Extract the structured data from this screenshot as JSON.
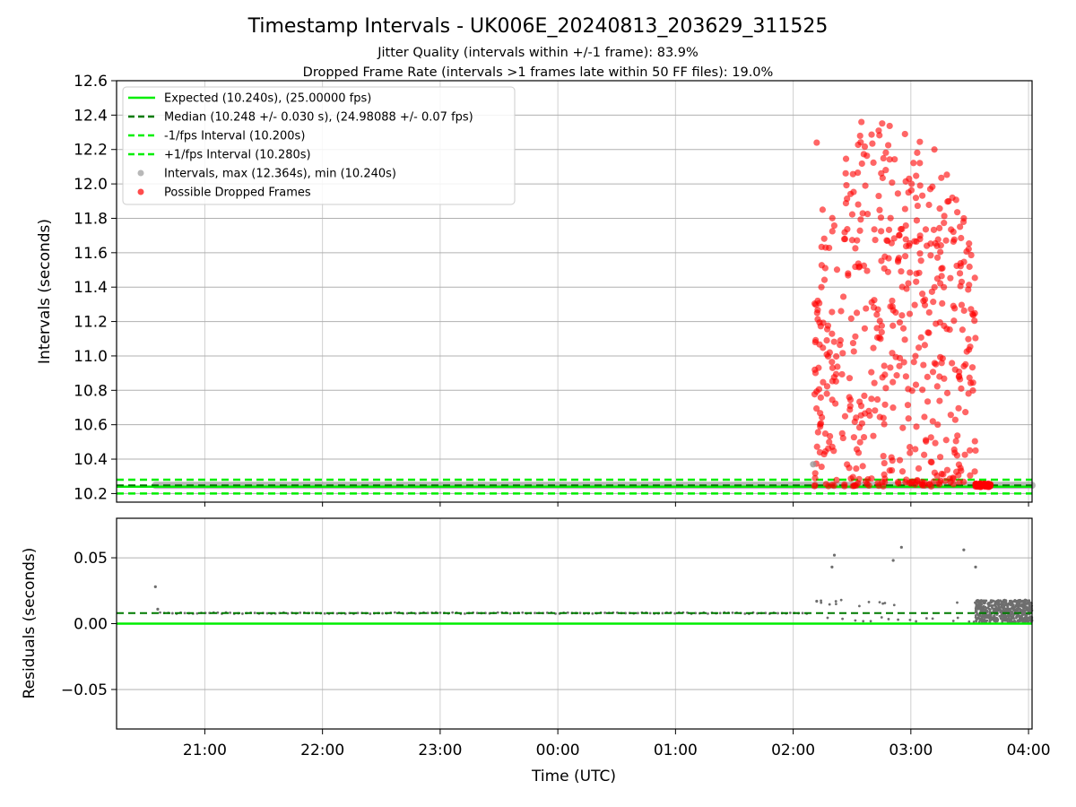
{
  "title": "Timestamp Intervals - UK006E_20240813_203629_311525",
  "subtitle_line1": "Jitter Quality (intervals within +/-1 frame): 83.9%",
  "subtitle_line2": "Dropped Frame Rate (intervals >1 frames late within 50 FF files): 19.0%",
  "colors": {
    "expected": "#00ee00",
    "median": "#007a00",
    "fps_bounds": "#00ee00",
    "intervals": "#9a9a9a",
    "dropped": "#ff0000",
    "residuals": "#6e6e6e",
    "grid": "#b0b0b0"
  },
  "chart_data": [
    {
      "type": "scatter",
      "panel": "top",
      "ylabel": "Intervals (seconds)",
      "ylim": [
        10.15,
        12.6
      ],
      "yticks": [
        "10.2",
        "10.4",
        "10.6",
        "10.8",
        "11.0",
        "11.2",
        "11.4",
        "11.6",
        "11.8",
        "12.0",
        "12.2",
        "12.4",
        "12.6"
      ],
      "ytick_values": [
        10.2,
        10.4,
        10.6,
        10.8,
        11.0,
        11.2,
        11.4,
        11.6,
        11.8,
        12.0,
        12.2,
        12.4,
        12.6
      ],
      "xlim_hours": [
        20.25,
        28.03
      ],
      "xtick_hours": [
        21,
        22,
        23,
        24,
        25,
        26,
        27,
        28
      ],
      "grid": true,
      "legend_position": "upper-left",
      "legend": [
        {
          "label": "Expected (10.240s), (25.00000 fps)",
          "style": "solid-line",
          "color": "#00ee00"
        },
        {
          "label": "Median (10.248 +/- 0.030 s), (24.98088 +/- 0.07 fps)",
          "style": "dashed-line",
          "color": "#007a00"
        },
        {
          "label": "-1/fps Interval (10.200s)",
          "style": "dashed-line",
          "color": "#00ee00"
        },
        {
          "label": "+1/fps Interval (10.280s)",
          "style": "dashed-line",
          "color": "#00ee00"
        },
        {
          "label": "Intervals, max (12.364s), min (10.240s)",
          "style": "marker",
          "color": "#9a9a9a"
        },
        {
          "label": "Possible Dropped Frames",
          "style": "marker",
          "color": "#ff0000"
        }
      ],
      "reference_lines": {
        "expected": 10.24,
        "median": 10.248,
        "minus_one_fps": 10.2,
        "plus_one_fps": 10.28
      },
      "baseline_intervals": {
        "x_start_hour": 20.58,
        "x_end_hour": 28.03,
        "value": 10.248
      },
      "sample_points": [
        {
          "x": 26.17,
          "y": 10.37,
          "series": "intervals"
        },
        {
          "x": 26.2,
          "y": 12.24,
          "series": "dropped"
        },
        {
          "x": 26.25,
          "y": 11.85,
          "series": "dropped"
        },
        {
          "x": 26.58,
          "y": 12.36,
          "series": "dropped"
        },
        {
          "x": 26.95,
          "y": 12.29,
          "series": "dropped"
        },
        {
          "x": 27.2,
          "y": 12.2,
          "series": "dropped"
        },
        {
          "x": 27.45,
          "y": 11.8,
          "series": "dropped"
        },
        {
          "x": 27.55,
          "y": 10.45,
          "series": "dropped"
        },
        {
          "x": 27.6,
          "y": 10.25,
          "series": "dropped"
        }
      ],
      "dropped_cluster": {
        "x_range_hours": [
          26.18,
          27.55
        ],
        "y_range": [
          10.24,
          12.36
        ],
        "dense_late_x_range_hours": [
          27.55,
          27.68
        ],
        "dense_late_y": 10.248
      }
    },
    {
      "type": "scatter",
      "panel": "bottom",
      "xlabel": "Time (UTC)",
      "ylabel": "Residuals (seconds)",
      "ylim": [
        -0.08,
        0.08
      ],
      "yticks": [
        "−0.05",
        "0.00",
        "0.05"
      ],
      "ytick_values": [
        -0.05,
        0.0,
        0.05
      ],
      "xticks": [
        "21:00",
        "22:00",
        "23:00",
        "00:00",
        "01:00",
        "02:00",
        "03:00",
        "04:00"
      ],
      "xtick_hours": [
        21,
        22,
        23,
        24,
        25,
        26,
        27,
        28
      ],
      "xlim_hours": [
        20.25,
        28.03
      ],
      "grid": true,
      "reference_lines": {
        "expected": 0.0,
        "median": 0.008
      },
      "sample_points": [
        {
          "x": 20.58,
          "y": 0.028
        },
        {
          "x": 20.6,
          "y": 0.011
        },
        {
          "x": 26.2,
          "y": 0.017
        },
        {
          "x": 26.33,
          "y": 0.043
        },
        {
          "x": 26.35,
          "y": 0.052
        },
        {
          "x": 26.85,
          "y": 0.048
        },
        {
          "x": 26.92,
          "y": 0.058
        },
        {
          "x": 27.45,
          "y": 0.056
        },
        {
          "x": 27.55,
          "y": 0.043
        }
      ],
      "dense_late_band": {
        "x_range_hours": [
          27.55,
          28.03
        ],
        "y_range": [
          0.001,
          0.018
        ]
      }
    }
  ]
}
